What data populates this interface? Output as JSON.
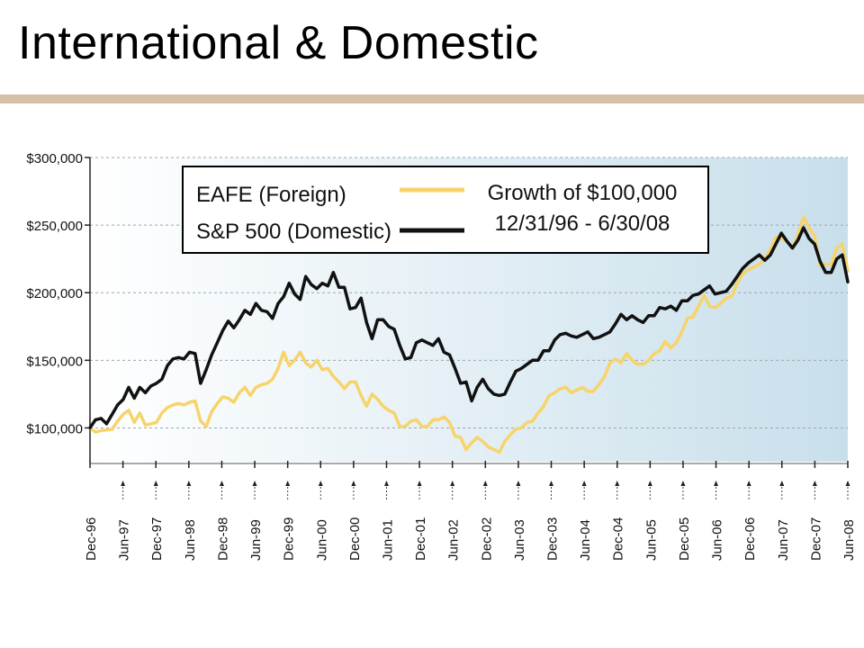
{
  "slide": {
    "title": "International & Domestic",
    "rule_color": "#d5bfa6"
  },
  "chart_data": {
    "type": "line",
    "title": "Growth of $100,000",
    "subtitle": "12/31/96 - 6/30/08",
    "xlabel": "",
    "ylabel": "",
    "ylim": [
      75000,
      300000
    ],
    "grid": true,
    "legend_position": "top-left",
    "y_ticks": [
      {
        "value": 100000,
        "label": "$100,000"
      },
      {
        "value": 150000,
        "label": "$150,000"
      },
      {
        "value": 200000,
        "label": "$200,000"
      },
      {
        "value": 250000,
        "label": "$250,000"
      },
      {
        "value": 300000,
        "label": "$300,000"
      }
    ],
    "x_ticks": [
      "Dec-96",
      "Jun-97",
      "Dec-97",
      "Jun-98",
      "Dec-98",
      "Jun-99",
      "Dec-99",
      "Jun-00",
      "Dec-00",
      "Jun-01",
      "Dec-01",
      "Jun-02",
      "Dec-02",
      "Jun-03",
      "Dec-03",
      "Jun-04",
      "Dec-04",
      "Jun-05",
      "Dec-05",
      "Jun-06",
      "Dec-06",
      "Jun-07",
      "Dec-07",
      "Jun-08"
    ],
    "series": [
      {
        "name": "EAFE (Foreign)",
        "color": "#f7d46a",
        "values": [
          100000,
          97000,
          98000,
          98500,
          99000,
          105000,
          110000,
          113000,
          104000,
          111000,
          102000,
          103000,
          104000,
          111000,
          115000,
          117000,
          118000,
          117000,
          119000,
          120000,
          105000,
          101000,
          112000,
          118000,
          123000,
          122000,
          119000,
          126000,
          130000,
          124000,
          130000,
          132000,
          133000,
          136000,
          144000,
          156000,
          146000,
          150000,
          156000,
          148000,
          145000,
          150000,
          143000,
          144000,
          138000,
          134000,
          129000,
          134000,
          134000,
          124000,
          116000,
          125000,
          121000,
          116000,
          113000,
          111000,
          101000,
          101000,
          105000,
          106000,
          101000,
          101000,
          106000,
          106000,
          108000,
          104000,
          94000,
          93000,
          84000,
          89000,
          93000,
          90000,
          86000,
          84000,
          82000,
          90000,
          95000,
          99000,
          100000,
          104000,
          105000,
          111000,
          116000,
          124000,
          126000,
          129000,
          130000,
          126000,
          128000,
          130000,
          127000,
          127000,
          132000,
          138000,
          148000,
          151000,
          148000,
          155000,
          150000,
          147000,
          147000,
          150000,
          155000,
          157000,
          164000,
          159000,
          163000,
          171000,
          181000,
          182000,
          190000,
          198000,
          190000,
          189000,
          192000,
          196000,
          197000,
          207000,
          214000,
          217000,
          219000,
          221000,
          225000,
          232000,
          241000,
          240000,
          238000,
          233000,
          243000,
          256000,
          248000,
          242000,
          220000,
          221000,
          221000,
          233000,
          236000,
          216000
        ],
        "label": "EAFE (Foreign)"
      },
      {
        "name": "S&P 500 (Domestic)",
        "color": "#111111",
        "values": [
          100000,
          106000,
          107000,
          103000,
          110000,
          117000,
          121000,
          130000,
          122000,
          130000,
          126000,
          131000,
          133000,
          136000,
          146000,
          151000,
          152000,
          151000,
          156000,
          155000,
          133000,
          143000,
          154000,
          163000,
          172000,
          179000,
          174000,
          180000,
          187000,
          184000,
          192000,
          187000,
          186000,
          181000,
          192000,
          197000,
          207000,
          199000,
          195000,
          212000,
          206000,
          203000,
          207000,
          205000,
          215000,
          204000,
          204000,
          188000,
          189000,
          196000,
          178000,
          166000,
          180000,
          180000,
          175000,
          173000,
          161000,
          151000,
          152000,
          163000,
          165000,
          163000,
          161000,
          166000,
          156000,
          154000,
          144000,
          133000,
          134000,
          120000,
          130000,
          136000,
          129000,
          125000,
          124000,
          125000,
          134000,
          142000,
          144000,
          147000,
          150000,
          150000,
          157000,
          157000,
          165000,
          169000,
          170000,
          168000,
          167000,
          169000,
          171000,
          166000,
          167000,
          169000,
          171000,
          177000,
          184000,
          180000,
          183000,
          180000,
          178000,
          183000,
          183000,
          189000,
          188000,
          190000,
          187000,
          194000,
          194000,
          198000,
          199000,
          202000,
          205000,
          199000,
          200000,
          201000,
          206000,
          212000,
          218000,
          222000,
          225000,
          228000,
          224000,
          228000,
          236000,
          244000,
          238000,
          233000,
          239000,
          248000,
          240000,
          236000,
          223000,
          215000,
          215000,
          225000,
          228000,
          208000
        ],
        "label": "S&P 500 (Domestic)"
      }
    ]
  }
}
